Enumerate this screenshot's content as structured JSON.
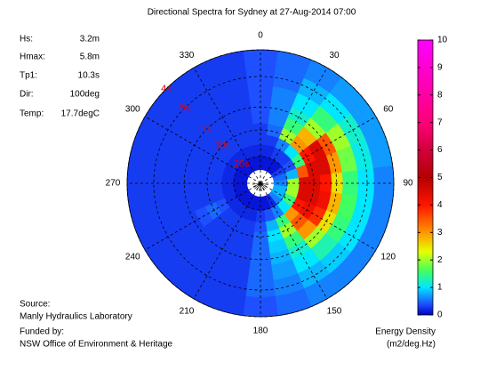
{
  "chart_data": {
    "type": "polar-spectrum",
    "title": "Directional Spectra for Sydney at 27-Aug-2014 07:00",
    "info": [
      {
        "label": "Hs:",
        "value": "3.2m"
      },
      {
        "label": "Hmax:",
        "value": "5.8m"
      },
      {
        "label": "Tp1:",
        "value": "10.3s"
      },
      {
        "label": "Dir:",
        "value": "100deg"
      },
      {
        "label": "Temp:",
        "value": "17.7degC"
      }
    ],
    "footer": [
      "Source:",
      "Manly Hydraulics Laboratory",
      "Funded by:",
      "NSW Office of Environment & Heritage"
    ],
    "colorbar_label": [
      "Energy Density",
      "(m2/deg.Hz)"
    ],
    "theta_ticks": [
      0,
      30,
      60,
      90,
      120,
      150,
      180,
      210,
      240,
      270,
      300,
      330
    ],
    "rticks": [
      {
        "value": 20,
        "label": "20s"
      },
      {
        "value": 10,
        "label": "10s"
      },
      {
        "value": 7,
        "label": "7s"
      },
      {
        "value": 5,
        "label": "5s"
      },
      {
        "value": 4,
        "label": "4s"
      }
    ],
    "directions": [
      0,
      15,
      30,
      45,
      60,
      75,
      90,
      105,
      120,
      135,
      150,
      165,
      180,
      195,
      210,
      225,
      240,
      255,
      270,
      285,
      300,
      315,
      330,
      345
    ],
    "periods": [
      25,
      16,
      12,
      10,
      8,
      7,
      6,
      5,
      4.4
    ],
    "values": [
      [
        0.1,
        0.1,
        0.1,
        0.1,
        0.3,
        0.5,
        0.6,
        0.8,
        0.8,
        0.6,
        0.2,
        0.1,
        0.1,
        0.1,
        0.1,
        0.1,
        0.1,
        0.1,
        0.1,
        0.1,
        0.1,
        0.1,
        0.1,
        0.1
      ],
      [
        0.2,
        0.2,
        0.3,
        0.3,
        0.4,
        0.8,
        2,
        2,
        1.5,
        1,
        0.6,
        0.4,
        0.3,
        0.2,
        0.2,
        0.2,
        0.2,
        0.2,
        0.2,
        0.2,
        0.2,
        0.2,
        0.2,
        0.2
      ],
      [
        0.3,
        0.3,
        0.6,
        1,
        1.5,
        3.5,
        4.5,
        4.5,
        4,
        3,
        1.5,
        0.8,
        0.4,
        0.3,
        0.3,
        0.3,
        0.4,
        0.3,
        0.3,
        0.3,
        0.3,
        0.3,
        0.3,
        0.3
      ],
      [
        0.3,
        0.5,
        2,
        3,
        4,
        4.5,
        4.5,
        4.5,
        4.2,
        3.5,
        2,
        1,
        0.5,
        0.3,
        0.3,
        0.3,
        0.5,
        0.3,
        0.3,
        0.3,
        0.3,
        0.3,
        0.3,
        0.3
      ],
      [
        0.4,
        0.6,
        1.5,
        2.8,
        4.5,
        4.5,
        4,
        4.2,
        3.8,
        3,
        1.5,
        0.9,
        0.5,
        0.3,
        0.3,
        0.3,
        0.4,
        0.3,
        0.3,
        0.3,
        0.3,
        0.3,
        0.3,
        0.3
      ],
      [
        0.4,
        0.6,
        1.2,
        2,
        3.5,
        3,
        2.5,
        2.8,
        2.5,
        2,
        1.2,
        0.8,
        0.5,
        0.3,
        0.3,
        0.3,
        0.3,
        0.3,
        0.3,
        0.3,
        0.3,
        0.3,
        0.3,
        0.3
      ],
      [
        0.4,
        0.6,
        1,
        1.5,
        2,
        1.8,
        1.5,
        1.6,
        1.5,
        1.3,
        1,
        0.7,
        0.5,
        0.3,
        0.3,
        0.3,
        0.3,
        0.3,
        0.3,
        0.3,
        0.3,
        0.3,
        0.3,
        0.3
      ],
      [
        0.4,
        0.5,
        0.8,
        1,
        1.2,
        1.1,
        1,
        1,
        1,
        0.9,
        0.8,
        0.6,
        0.5,
        0.3,
        0.3,
        0.3,
        0.3,
        0.3,
        0.3,
        0.3,
        0.3,
        0.3,
        0.3,
        0.3
      ],
      [
        0.4,
        0.5,
        0.6,
        0.7,
        0.7,
        0.7,
        0.6,
        0.6,
        0.6,
        0.6,
        0.6,
        0.5,
        0.4,
        0.3,
        0.3,
        0.3,
        0.3,
        0.3,
        0.3,
        0.3,
        0.3,
        0.3,
        0.3,
        0.3
      ]
    ],
    "colormap": [
      {
        "value": 0,
        "color": "#0000c8"
      },
      {
        "value": 0.4,
        "color": "#1e50ff"
      },
      {
        "value": 1,
        "color": "#00e6ff"
      },
      {
        "value": 1.6,
        "color": "#40ff60"
      },
      {
        "value": 2.3,
        "color": "#e6ff00"
      },
      {
        "value": 3,
        "color": "#ff9600"
      },
      {
        "value": 4,
        "color": "#ff1400"
      },
      {
        "value": 5,
        "color": "#b40000"
      },
      {
        "value": 6,
        "color": "#d2003c"
      },
      {
        "value": 7,
        "color": "#ff0078"
      },
      {
        "value": 10,
        "color": "#ff00ff"
      }
    ],
    "clim": [
      0,
      10
    ],
    "cticks": [
      0,
      1,
      2,
      3,
      4,
      5,
      6,
      7,
      8,
      9,
      10
    ]
  }
}
